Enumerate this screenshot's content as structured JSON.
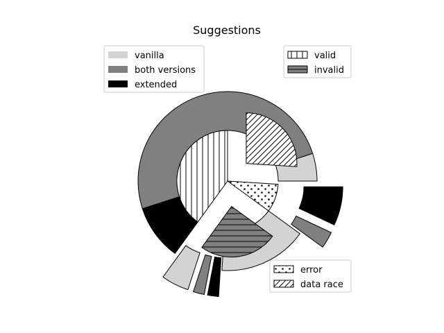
{
  "chart_data": {
    "type": "pie",
    "title": "Suggestions",
    "outer_ring": {
      "slices": [
        {
          "label": "vanilla",
          "value": 5,
          "color": "#d3d3d3"
        },
        {
          "label": "both versions",
          "value": 50,
          "color": "#808080"
        },
        {
          "label": "extended",
          "value": 10,
          "color": "#000000"
        },
        {
          "label": "vanilla",
          "value": 5,
          "color": "#d3d3d3",
          "exploded": true
        },
        {
          "label": "both versions",
          "value": 2,
          "color": "#808080",
          "exploded": true
        },
        {
          "label": "extended",
          "value": 2,
          "color": "#000000",
          "exploded": true
        },
        {
          "label": "vanilla",
          "value": 16,
          "color": "#d3d3d3"
        },
        {
          "label": "both versions",
          "value": 3,
          "color": "#808080",
          "exploded": true
        },
        {
          "label": "extended",
          "value": 7,
          "color": "#000000",
          "exploded": true
        }
      ]
    },
    "inner_pie": {
      "slices": [
        {
          "label": "valid",
          "value": 40,
          "hatch": "vertical"
        },
        {
          "label": "invalid",
          "value": 25,
          "hatch": "horizontal",
          "exploded": true
        },
        {
          "label": "error",
          "value": 9,
          "hatch": "dots"
        },
        {
          "label": "data race",
          "value": 26,
          "hatch": "diagonal",
          "exploded": true
        }
      ]
    },
    "legends": [
      {
        "placement": "top-left",
        "entries": [
          {
            "label": "vanilla",
            "color": "#d3d3d3"
          },
          {
            "label": "both versions",
            "color": "#808080"
          },
          {
            "label": "extended",
            "color": "#000000"
          }
        ]
      },
      {
        "placement": "top-right",
        "entries": [
          {
            "label": "valid",
            "hatch": "vertical"
          },
          {
            "label": "invalid",
            "hatch": "horizontal"
          }
        ]
      },
      {
        "placement": "bottom-right",
        "entries": [
          {
            "label": "error",
            "hatch": "dots"
          },
          {
            "label": "data race",
            "hatch": "diagonal"
          }
        ]
      }
    ]
  }
}
